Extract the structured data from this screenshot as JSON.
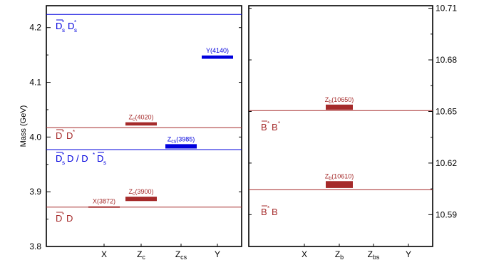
{
  "chart_data": [
    {
      "type": "level-diagram",
      "ylabel": "Mass (GeV)",
      "ylim": [
        3.8,
        4.24
      ],
      "yticks": [
        3.8,
        3.9,
        4.0,
        4.1,
        4.2
      ],
      "ytick_labels": [
        "3.8",
        "3.9",
        "4.0",
        "4.1",
        "4.2"
      ],
      "categories": [
        {
          "key": "X",
          "label": "X"
        },
        {
          "key": "Zc",
          "label": "Z",
          "sub": "c"
        },
        {
          "key": "Zcs",
          "label": "Z",
          "sub": "cs"
        },
        {
          "key": "Y",
          "label": "Y"
        }
      ],
      "states": [
        {
          "category": "X",
          "mass": 3.872,
          "width": 0.002,
          "name": "X",
          "paren": "(3872)",
          "color": "#a52a2a"
        },
        {
          "category": "Zc",
          "mass": 3.887,
          "width": 0.008,
          "name": "Z",
          "sub": "c",
          "paren": "(3900)",
          "color": "#a52a2a"
        },
        {
          "category": "Zc",
          "mass": 4.024,
          "width": 0.006,
          "name": "Z",
          "sub": "c",
          "paren": "(4020)",
          "color": "#a52a2a"
        },
        {
          "category": "Zcs",
          "mass": 3.983,
          "width": 0.008,
          "name": "Z",
          "sub": "cs",
          "paren": "(3985)",
          "color": "#0000dd"
        },
        {
          "category": "Y",
          "mass": 4.146,
          "width": 0.006,
          "name": "Y",
          "paren": "(4140)",
          "color": "#0000dd"
        }
      ],
      "thresholds": [
        {
          "mass": 4.224,
          "color": "#0000dd",
          "label": "D̄*sD*s"
        },
        {
          "mass": 4.017,
          "color": "#a52a2a",
          "label": "D̄*D*"
        },
        {
          "mass": 3.977,
          "color": "#0000dd",
          "label": "D̄*sD / D*D̄s"
        },
        {
          "mass": 3.872,
          "color": "#a52a2a",
          "label": "D̄*D"
        }
      ]
    },
    {
      "type": "level-diagram",
      "ylim": [
        10.5715,
        10.7115
      ],
      "yticks": [
        10.59,
        10.62,
        10.65,
        10.68,
        10.71
      ],
      "ytick_labels": [
        "10.59",
        "10.62",
        "10.65",
        "10.68",
        "10.71"
      ],
      "categories": [
        {
          "key": "X",
          "label": "X"
        },
        {
          "key": "Zb",
          "label": "Z",
          "sub": "b"
        },
        {
          "key": "Zbs",
          "label": "Z",
          "sub": "bs"
        },
        {
          "key": "Y",
          "label": "Y"
        }
      ],
      "states": [
        {
          "category": "Zb",
          "mass": 10.6075,
          "width": 0.004,
          "name": "Z",
          "sub": "b",
          "paren": "(10610)",
          "color": "#a52a2a"
        },
        {
          "category": "Zb",
          "mass": 10.6525,
          "width": 0.003,
          "name": "Z",
          "sub": "b",
          "paren": "(10650)",
          "color": "#a52a2a"
        }
      ],
      "thresholds": [
        {
          "mass": 10.6505,
          "color": "#a52a2a",
          "label": "B̄*B*"
        },
        {
          "mass": 10.6045,
          "color": "#a52a2a",
          "label": "B̄*B"
        }
      ]
    }
  ],
  "style": {
    "brown": "#a52a2a",
    "blue": "#0000dd",
    "threshold_line_style": "thin solid",
    "state_marker": "filled bar",
    "right_panel_axis_side": "right"
  }
}
